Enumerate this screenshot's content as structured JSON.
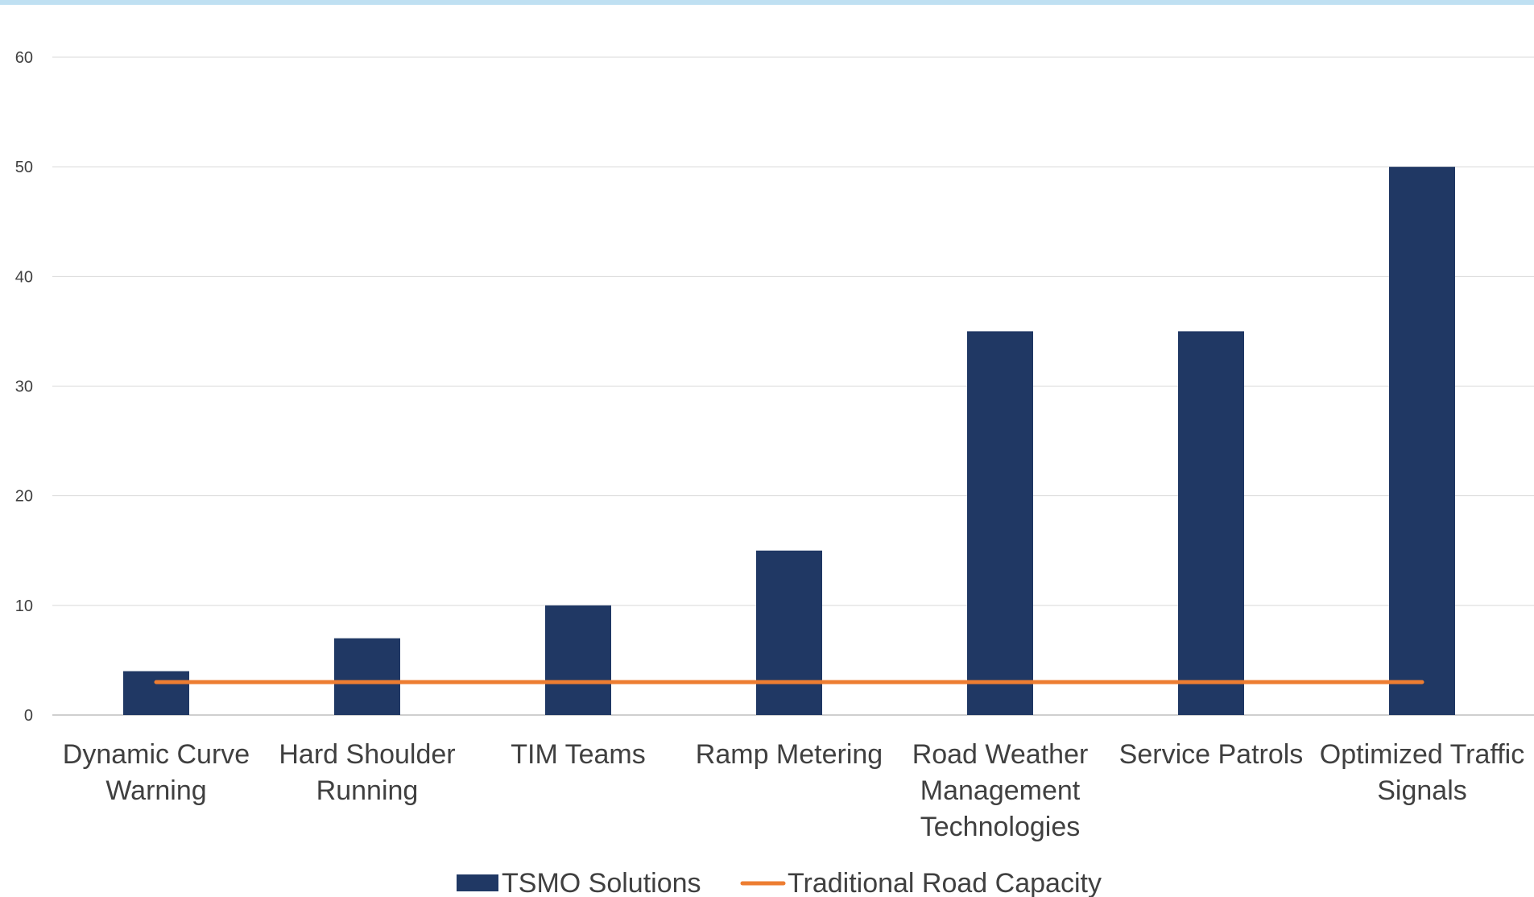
{
  "chart_data": {
    "type": "bar",
    "title": "",
    "xlabel": "",
    "ylabel": "",
    "ylim": [
      0,
      60
    ],
    "yticks": [
      0,
      10,
      20,
      30,
      40,
      50,
      60
    ],
    "grid": true,
    "legend_position": "bottom",
    "categories": [
      [
        "Dynamic Curve",
        "Warning"
      ],
      [
        "Hard Shoulder",
        "Running"
      ],
      [
        "TIM Teams"
      ],
      [
        "Ramp Metering"
      ],
      [
        "Road Weather",
        "Management",
        "Technologies"
      ],
      [
        "Service Patrols"
      ],
      [
        "Optimized Traffic",
        "Signals"
      ]
    ],
    "series": [
      {
        "name": "TSMO Solutions",
        "type": "bar",
        "color": "#203864",
        "values": [
          4,
          7,
          10,
          15,
          35,
          35,
          50
        ]
      },
      {
        "name": "Traditional Road Capacity",
        "type": "line",
        "color": "#ed7d31",
        "values": [
          3,
          3,
          3,
          3,
          3,
          3,
          3
        ]
      }
    ]
  }
}
